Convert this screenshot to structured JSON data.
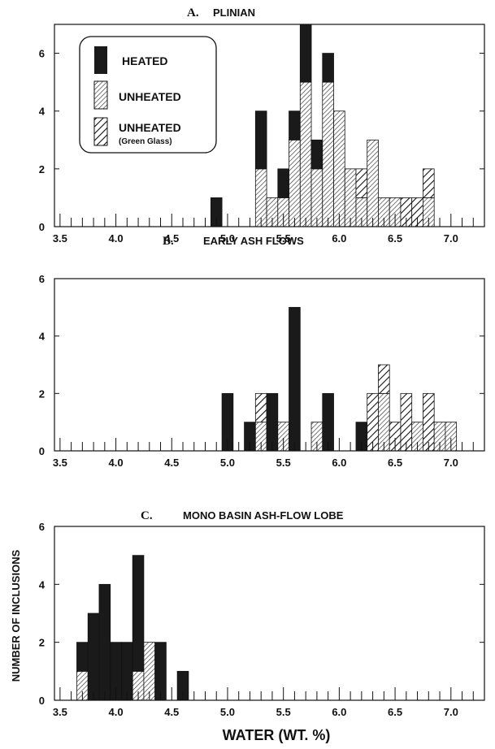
{
  "colors": {
    "heated": "#1a1a1a",
    "unheated": "#cfcfcf",
    "green_glass": "#ffffff",
    "ink": "#111111"
  },
  "legend": {
    "items": [
      {
        "key": "heated",
        "label": "HEATED",
        "sub": ""
      },
      {
        "key": "unheated",
        "label": "UNHEATED",
        "sub": ""
      },
      {
        "key": "green",
        "label": "UNHEATED",
        "sub": "(Green Glass)"
      }
    ]
  },
  "xlabel": "WATER  (WT. %)",
  "ylabel": "NUMBER OF INCLUSIONS",
  "chart_data": [
    {
      "type": "bar",
      "letter": "A.",
      "title": "PLINIAN",
      "xlim": [
        3.45,
        7.3
      ],
      "ylim": [
        0,
        7
      ],
      "xticks": [
        "3.5",
        "4.0",
        "4.5",
        "5.0",
        "5.5",
        "6.0",
        "6.5",
        "7.0"
      ],
      "yticks": [
        "0",
        "2",
        "4",
        "6"
      ],
      "bins": [
        {
          "x": 4.9,
          "heated": 1,
          "unheated": 0,
          "green": 0
        },
        {
          "x": 5.3,
          "heated": 2,
          "unheated": 2,
          "green": 0
        },
        {
          "x": 5.4,
          "heated": 0,
          "unheated": 1,
          "green": 0
        },
        {
          "x": 5.5,
          "heated": 1,
          "unheated": 1,
          "green": 0
        },
        {
          "x": 5.6,
          "heated": 1,
          "unheated": 3,
          "green": 0
        },
        {
          "x": 5.7,
          "heated": 2,
          "unheated": 5,
          "green": 0
        },
        {
          "x": 5.8,
          "heated": 1,
          "unheated": 2,
          "green": 0
        },
        {
          "x": 5.9,
          "heated": 1,
          "unheated": 5,
          "green": 0
        },
        {
          "x": 6.0,
          "heated": 0,
          "unheated": 4,
          "green": 0
        },
        {
          "x": 6.1,
          "heated": 0,
          "unheated": 2,
          "green": 0
        },
        {
          "x": 6.2,
          "heated": 0,
          "unheated": 1,
          "green": 1
        },
        {
          "x": 6.3,
          "heated": 0,
          "unheated": 3,
          "green": 0
        },
        {
          "x": 6.4,
          "heated": 0,
          "unheated": 1,
          "green": 0
        },
        {
          "x": 6.5,
          "heated": 0,
          "unheated": 1,
          "green": 0
        },
        {
          "x": 6.6,
          "heated": 0,
          "unheated": 0,
          "green": 1
        },
        {
          "x": 6.7,
          "heated": 0,
          "unheated": 0,
          "green": 1
        },
        {
          "x": 6.8,
          "heated": 0,
          "unheated": 1,
          "green": 1
        }
      ]
    },
    {
      "type": "bar",
      "letter": "B.",
      "title": "EARLY ASH FLOWS",
      "xlim": [
        3.45,
        7.3
      ],
      "ylim": [
        0,
        6
      ],
      "xticks": [
        "3.5",
        "4.0",
        "4.5",
        "5.0",
        "5.5",
        "6.0",
        "6.5",
        "7.0"
      ],
      "yticks": [
        "0",
        "2",
        "4",
        "6"
      ],
      "bins": [
        {
          "x": 5.0,
          "heated": 2,
          "unheated": 0,
          "green": 0
        },
        {
          "x": 5.2,
          "heated": 1,
          "unheated": 0,
          "green": 0
        },
        {
          "x": 5.3,
          "heated": 0,
          "unheated": 1,
          "green": 1
        },
        {
          "x": 5.4,
          "heated": 2,
          "unheated": 0,
          "green": 0
        },
        {
          "x": 5.5,
          "heated": 0,
          "unheated": 1,
          "green": 0
        },
        {
          "x": 5.6,
          "heated": 5,
          "unheated": 0,
          "green": 0
        },
        {
          "x": 5.8,
          "heated": 0,
          "unheated": 1,
          "green": 0
        },
        {
          "x": 5.9,
          "heated": 2,
          "unheated": 0,
          "green": 0
        },
        {
          "x": 6.2,
          "heated": 1,
          "unheated": 0,
          "green": 0
        },
        {
          "x": 6.3,
          "heated": 0,
          "unheated": 0,
          "green": 2
        },
        {
          "x": 6.4,
          "heated": 0,
          "unheated": 2,
          "green": 1
        },
        {
          "x": 6.5,
          "heated": 0,
          "unheated": 0,
          "green": 1
        },
        {
          "x": 6.6,
          "heated": 0,
          "unheated": 0,
          "green": 2
        },
        {
          "x": 6.7,
          "heated": 0,
          "unheated": 1,
          "green": 0
        },
        {
          "x": 6.8,
          "heated": 0,
          "unheated": 0,
          "green": 2
        },
        {
          "x": 6.9,
          "heated": 0,
          "unheated": 1,
          "green": 0
        },
        {
          "x": 7.0,
          "heated": 0,
          "unheated": 1,
          "green": 0
        }
      ]
    },
    {
      "type": "bar",
      "letter": "C.",
      "title": "MONO BASIN ASH-FLOW LOBE",
      "xlim": [
        3.45,
        7.3
      ],
      "ylim": [
        0,
        6
      ],
      "xticks": [
        "3.5",
        "4.0",
        "4.5",
        "5.0",
        "5.5",
        "6.0",
        "6.5",
        "7.0"
      ],
      "yticks": [
        "0",
        "2",
        "4",
        "6"
      ],
      "bins": [
        {
          "x": 3.7,
          "heated": 1,
          "unheated": 1,
          "green": 0
        },
        {
          "x": 3.8,
          "heated": 3,
          "unheated": 0,
          "green": 0
        },
        {
          "x": 3.9,
          "heated": 4,
          "unheated": 0,
          "green": 0
        },
        {
          "x": 4.0,
          "heated": 2,
          "unheated": 0,
          "green": 0
        },
        {
          "x": 4.1,
          "heated": 2,
          "unheated": 0,
          "green": 0
        },
        {
          "x": 4.2,
          "heated": 4,
          "unheated": 1,
          "green": 0
        },
        {
          "x": 4.3,
          "heated": 0,
          "unheated": 2,
          "green": 0
        },
        {
          "x": 4.4,
          "heated": 2,
          "unheated": 0,
          "green": 0
        },
        {
          "x": 4.6,
          "heated": 1,
          "unheated": 0,
          "green": 0
        }
      ]
    }
  ]
}
